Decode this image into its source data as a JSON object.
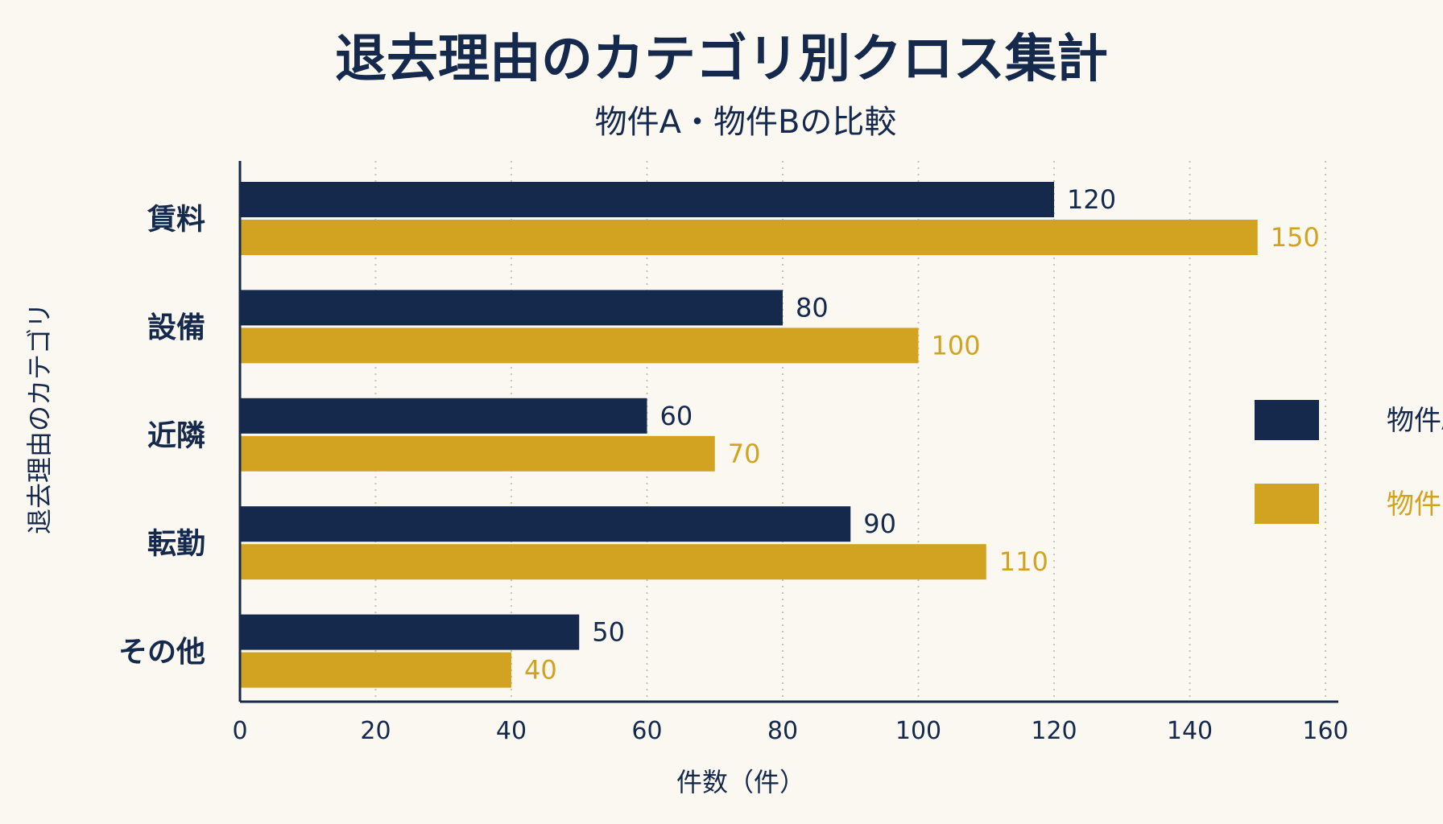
{
  "colors": {
    "background": "#fbf8f1",
    "series_a": "#14294b",
    "series_b": "#d2a321",
    "text": "#14294b",
    "grid": "#c9c2b3"
  },
  "chart_data": {
    "type": "bar",
    "orientation": "horizontal",
    "title": "退去理由のカテゴリ別クロス集計",
    "subtitle": "物件A・物件Bの比較",
    "xlabel": "件数（件）",
    "ylabel": "退去理由のカテゴリ",
    "categories": [
      "賃料",
      "設備",
      "近隣",
      "転勤",
      "その他"
    ],
    "series": [
      {
        "name": "物件A",
        "values": [
          120,
          80,
          60,
          90,
          50
        ]
      },
      {
        "name": "物件B",
        "values": [
          150,
          100,
          70,
          110,
          40
        ]
      }
    ],
    "xlim": [
      0,
      160
    ],
    "xticks": [
      0,
      20,
      40,
      60,
      80,
      100,
      120,
      140,
      160
    ],
    "xtick_labels": [
      "0",
      "20",
      "40",
      "60",
      "80",
      "100",
      "120",
      "140",
      "160"
    ],
    "grid": "vertical dotted",
    "legend_position": "right"
  }
}
